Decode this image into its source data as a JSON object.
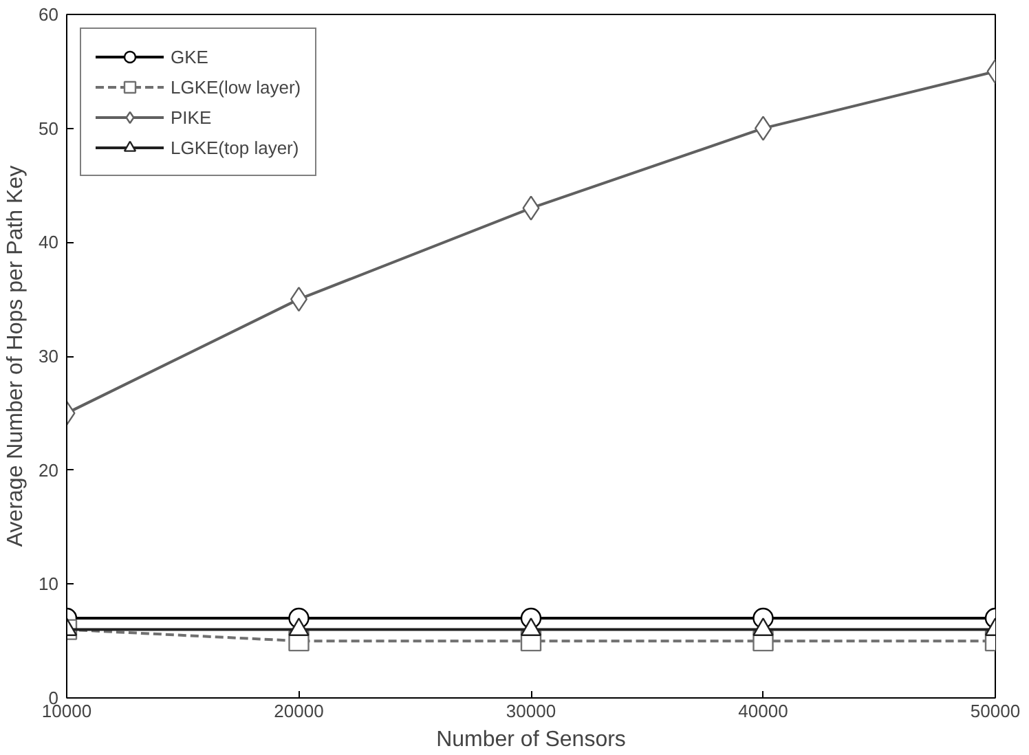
{
  "chart_data": {
    "type": "line",
    "xlabel": "Number of Sensors",
    "ylabel": "Average Number of Hops per Path Key",
    "x": [
      10000,
      20000,
      30000,
      40000,
      50000
    ],
    "xlim": [
      10000,
      50000
    ],
    "xticks": [
      10000,
      20000,
      30000,
      40000,
      50000
    ],
    "ylim": [
      0,
      60
    ],
    "yticks": [
      0,
      10,
      20,
      30,
      40,
      50,
      60
    ],
    "legend": "top left",
    "grid": false,
    "series": [
      {
        "name": "GKE",
        "color": "#000000",
        "values": [
          7,
          7,
          7,
          7,
          7
        ],
        "marker": "circle",
        "line_style": "solid"
      },
      {
        "name": "LGKE(low layer)",
        "color": "#707070",
        "values": [
          6,
          5,
          5,
          5,
          5
        ],
        "marker": "square",
        "line_style": "dashed"
      },
      {
        "name": "PIKE",
        "color": "#606060",
        "values": [
          25,
          35,
          43,
          50,
          55
        ],
        "marker": "diamond",
        "line_style": "solid"
      },
      {
        "name": "LGKE(top layer)",
        "color": "#202020",
        "values": [
          6,
          6,
          6,
          6,
          6
        ],
        "marker": "triangle",
        "line_style": "solid"
      }
    ]
  }
}
